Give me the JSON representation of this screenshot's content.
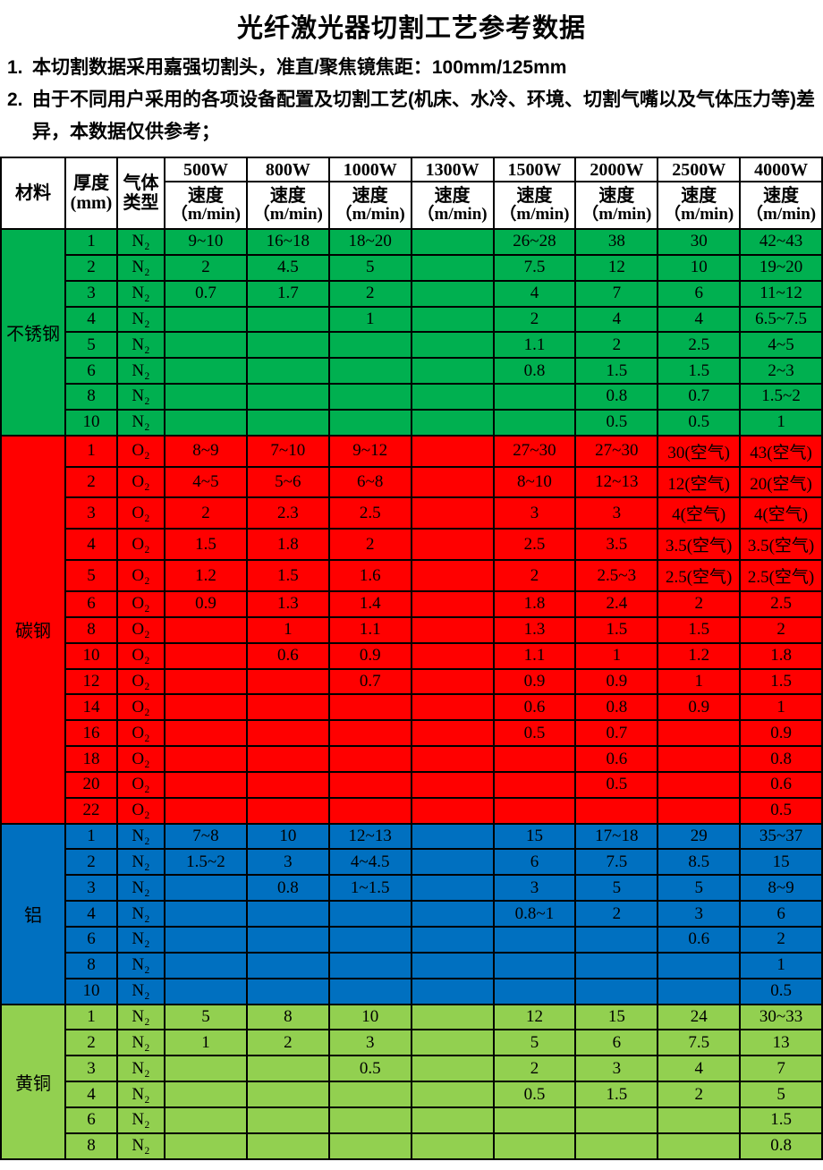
{
  "title": "光纤激光器切割工艺参考数据",
  "notes": [
    {
      "num": "1.",
      "text": "本切割数据采用嘉强切割头，准直/聚焦镜焦距：100mm/125mm"
    },
    {
      "num": "2.",
      "text": "由于不同用户采用的各项设备配置及切割工艺(机床、水冷、环境、切割气嘴以及气体压力等)差异，本数据仅供参考；"
    }
  ],
  "table": {
    "material_header": "材料",
    "thickness_header_line1": "厚度",
    "thickness_header_line2": "(mm)",
    "gas_header_line1": "气体",
    "gas_header_line2": "类型",
    "speed_label": "速度",
    "speed_unit": "（m/min)",
    "powers": [
      "500W",
      "800W",
      "1000W",
      "1300W",
      "1500W",
      "2000W",
      "2500W",
      "4000W"
    ],
    "sections": [
      {
        "material": "不锈钢",
        "color": "#00B050",
        "rows": [
          {
            "t": "1",
            "gas": "N₂",
            "v": [
              "9~10",
              "16~18",
              "18~20",
              "",
              "26~28",
              "38",
              "30",
              "42~43"
            ]
          },
          {
            "t": "2",
            "gas": "N₂",
            "v": [
              "2",
              "4.5",
              "5",
              "",
              "7.5",
              "12",
              "10",
              "19~20"
            ]
          },
          {
            "t": "3",
            "gas": "N₂",
            "v": [
              "0.7",
              "1.7",
              "2",
              "",
              "4",
              "7",
              "6",
              "11~12"
            ]
          },
          {
            "t": "4",
            "gas": "N₂",
            "v": [
              "",
              "",
              "1",
              "",
              "2",
              "4",
              "4",
              "6.5~7.5"
            ]
          },
          {
            "t": "5",
            "gas": "N₂",
            "v": [
              "",
              "",
              "",
              "",
              "1.1",
              "2",
              "2.5",
              "4~5"
            ]
          },
          {
            "t": "6",
            "gas": "N₂",
            "v": [
              "",
              "",
              "",
              "",
              "0.8",
              "1.5",
              "1.5",
              "2~3"
            ]
          },
          {
            "t": "8",
            "gas": "N₂",
            "v": [
              "",
              "",
              "",
              "",
              "",
              "0.8",
              "0.7",
              "1.5~2"
            ]
          },
          {
            "t": "10",
            "gas": "N₂",
            "v": [
              "",
              "",
              "",
              "",
              "",
              "0.5",
              "0.5",
              "1"
            ]
          }
        ]
      },
      {
        "material": "碳钢",
        "color": "#FF0000",
        "rows": [
          {
            "t": "1",
            "gas": "O₂",
            "v": [
              "8~9",
              "7~10",
              "9~12",
              "",
              "27~30",
              "27~30",
              "30(空气)",
              "43(空气)"
            ]
          },
          {
            "t": "2",
            "gas": "O₂",
            "v": [
              "4~5",
              "5~6",
              "6~8",
              "",
              "8~10",
              "12~13",
              "12(空气)",
              "20(空气)"
            ]
          },
          {
            "t": "3",
            "gas": "O₂",
            "v": [
              "2",
              "2.3",
              "2.5",
              "",
              "3",
              "3",
              "4(空气)",
              "4(空气)"
            ]
          },
          {
            "t": "4",
            "gas": "O₂",
            "v": [
              "1.5",
              "1.8",
              "2",
              "",
              "2.5",
              "3.5",
              "3.5(空气)",
              "3.5(空气)"
            ]
          },
          {
            "t": "5",
            "gas": "O₂",
            "v": [
              "1.2",
              "1.5",
              "1.6",
              "",
              "2",
              "2.5~3",
              "2.5(空气)",
              "2.5(空气)"
            ]
          },
          {
            "t": "6",
            "gas": "O₂",
            "v": [
              "0.9",
              "1.3",
              "1.4",
              "",
              "1.8",
              "2.4",
              "2",
              "2.5"
            ]
          },
          {
            "t": "8",
            "gas": "O₂",
            "v": [
              "",
              "1",
              "1.1",
              "",
              "1.3",
              "1.5",
              "1.5",
              "2"
            ]
          },
          {
            "t": "10",
            "gas": "O₂",
            "v": [
              "",
              "0.6",
              "0.9",
              "",
              "1.1",
              "1",
              "1.2",
              "1.8"
            ]
          },
          {
            "t": "12",
            "gas": "O₂",
            "v": [
              "",
              "",
              "0.7",
              "",
              "0.9",
              "0.9",
              "1",
              "1.5"
            ]
          },
          {
            "t": "14",
            "gas": "O₂",
            "v": [
              "",
              "",
              "",
              "",
              "0.6",
              "0.8",
              "0.9",
              "1"
            ]
          },
          {
            "t": "16",
            "gas": "O₂",
            "v": [
              "",
              "",
              "",
              "",
              "0.5",
              "0.7",
              "",
              "0.9"
            ]
          },
          {
            "t": "18",
            "gas": "O₂",
            "v": [
              "",
              "",
              "",
              "",
              "",
              "0.6",
              "",
              "0.8"
            ]
          },
          {
            "t": "20",
            "gas": "O₂",
            "v": [
              "",
              "",
              "",
              "",
              "",
              "0.5",
              "",
              "0.6"
            ]
          },
          {
            "t": "22",
            "gas": "O₂",
            "v": [
              "",
              "",
              "",
              "",
              "",
              "",
              "",
              "0.5"
            ]
          }
        ]
      },
      {
        "material": "铝",
        "color": "#0070C0",
        "rows": [
          {
            "t": "1",
            "gas": "N₂",
            "v": [
              "7~8",
              "10",
              "12~13",
              "",
              "15",
              "17~18",
              "29",
              "35~37"
            ]
          },
          {
            "t": "2",
            "gas": "N₂",
            "v": [
              "1.5~2",
              "3",
              "4~4.5",
              "",
              "6",
              "7.5",
              "8.5",
              "15"
            ]
          },
          {
            "t": "3",
            "gas": "N₂",
            "v": [
              "",
              "0.8",
              "1~1.5",
              "",
              "3",
              "5",
              "5",
              "8~9"
            ]
          },
          {
            "t": "4",
            "gas": "N₂",
            "v": [
              "",
              "",
              "",
              "",
              "0.8~1",
              "2",
              "3",
              "6"
            ]
          },
          {
            "t": "6",
            "gas": "N₂",
            "v": [
              "",
              "",
              "",
              "",
              "",
              "",
              "0.6",
              "2"
            ]
          },
          {
            "t": "8",
            "gas": "N₂",
            "v": [
              "",
              "",
              "",
              "",
              "",
              "",
              "",
              "1"
            ]
          },
          {
            "t": "10",
            "gas": "N₂",
            "v": [
              "",
              "",
              "",
              "",
              "",
              "",
              "",
              "0.5"
            ]
          }
        ]
      },
      {
        "material": "黄铜",
        "color": "#92D050",
        "rows": [
          {
            "t": "1",
            "gas": "N₂",
            "v": [
              "5",
              "8",
              "10",
              "",
              "12",
              "15",
              "24",
              "30~33"
            ]
          },
          {
            "t": "2",
            "gas": "N₂",
            "v": [
              "1",
              "2",
              "3",
              "",
              "5",
              "6",
              "7.5",
              "13"
            ]
          },
          {
            "t": "3",
            "gas": "N₂",
            "v": [
              "",
              "",
              "0.5",
              "",
              "2",
              "3",
              "4",
              "7"
            ]
          },
          {
            "t": "4",
            "gas": "N₂",
            "v": [
              "",
              "",
              "",
              "",
              "0.5",
              "1.5",
              "2",
              "5"
            ]
          },
          {
            "t": "6",
            "gas": "N₂",
            "v": [
              "",
              "",
              "",
              "",
              "",
              "",
              "",
              "1.5"
            ]
          },
          {
            "t": "8",
            "gas": "N₂",
            "v": [
              "",
              "",
              "",
              "",
              "",
              "",
              "",
              "0.8"
            ]
          }
        ]
      }
    ]
  }
}
